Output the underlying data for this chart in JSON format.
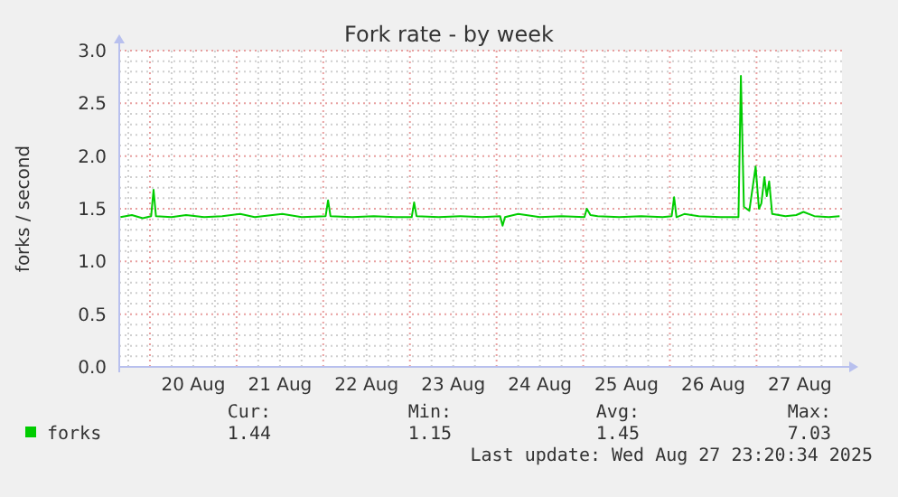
{
  "chart_data": {
    "type": "line",
    "title": "Fork rate - by week",
    "ylabel": "forks / second",
    "x": [
      "2025-08-19T15:50",
      "2025-08-19T19:00",
      "2025-08-19T22:00",
      "2025-08-20T00:20",
      "2025-08-20T01:00",
      "2025-08-20T01:40",
      "2025-08-20T06:00",
      "2025-08-20T10:00",
      "2025-08-20T15:00",
      "2025-08-20T20:00",
      "2025-08-21T01:00",
      "2025-08-21T05:00",
      "2025-08-21T12:40",
      "2025-08-21T18:00",
      "2025-08-22T00:40",
      "2025-08-22T01:20",
      "2025-08-22T02:00",
      "2025-08-22T08:00",
      "2025-08-22T14:00",
      "2025-08-22T20:00",
      "2025-08-23T00:30",
      "2025-08-23T01:10",
      "2025-08-23T01:50",
      "2025-08-23T08:00",
      "2025-08-23T14:00",
      "2025-08-23T20:00",
      "2025-08-24T01:00",
      "2025-08-24T01:40",
      "2025-08-24T02:20",
      "2025-08-24T06:00",
      "2025-08-24T12:00",
      "2025-08-24T18:00",
      "2025-08-25T00:20",
      "2025-08-25T01:00",
      "2025-08-25T02:00",
      "2025-08-25T04:00",
      "2025-08-25T10:00",
      "2025-08-25T16:00",
      "2025-08-25T22:00",
      "2025-08-26T00:30",
      "2025-08-26T01:10",
      "2025-08-26T01:50",
      "2025-08-26T04:00",
      "2025-08-26T08:00",
      "2025-08-26T14:00",
      "2025-08-26T19:00",
      "2025-08-26T19:40",
      "2025-08-26T20:30",
      "2025-08-26T22:00",
      "2025-08-26T23:45",
      "2025-08-27T00:40",
      "2025-08-27T01:20",
      "2025-08-27T02:10",
      "2025-08-27T02:50",
      "2025-08-27T03:30",
      "2025-08-27T04:20",
      "2025-08-27T08:00",
      "2025-08-27T11:00",
      "2025-08-27T13:00",
      "2025-08-27T16:00",
      "2025-08-27T20:00",
      "2025-08-27T23:00"
    ],
    "series": [
      {
        "name": "forks",
        "color": "#00cc00",
        "values": [
          1.42,
          1.44,
          1.41,
          1.43,
          1.68,
          1.43,
          1.42,
          1.44,
          1.42,
          1.43,
          1.45,
          1.42,
          1.45,
          1.42,
          1.43,
          1.58,
          1.43,
          1.42,
          1.43,
          1.42,
          1.42,
          1.56,
          1.43,
          1.42,
          1.43,
          1.42,
          1.43,
          1.34,
          1.42,
          1.45,
          1.42,
          1.43,
          1.42,
          1.5,
          1.44,
          1.43,
          1.42,
          1.43,
          1.42,
          1.43,
          1.61,
          1.42,
          1.45,
          1.43,
          1.42,
          1.42,
          2.76,
          1.52,
          1.48,
          1.9,
          1.5,
          1.55,
          1.8,
          1.62,
          1.76,
          1.45,
          1.43,
          1.44,
          1.47,
          1.43,
          1.42,
          1.43
        ]
      }
    ],
    "xlim": [
      "2025-08-19T15:30",
      "2025-08-27T23:40"
    ],
    "xticks": [
      {
        "value": "2025-08-20T12:00",
        "label": "20 Aug"
      },
      {
        "value": "2025-08-21T12:00",
        "label": "21 Aug"
      },
      {
        "value": "2025-08-22T12:00",
        "label": "22 Aug"
      },
      {
        "value": "2025-08-23T12:00",
        "label": "23 Aug"
      },
      {
        "value": "2025-08-24T12:00",
        "label": "24 Aug"
      },
      {
        "value": "2025-08-25T12:00",
        "label": "25 Aug"
      },
      {
        "value": "2025-08-26T12:00",
        "label": "26 Aug"
      },
      {
        "value": "2025-08-27T12:00",
        "label": "27 Aug"
      }
    ],
    "ylim": [
      0,
      3
    ],
    "yticks": [
      {
        "value": 0,
        "label": "0.0"
      },
      {
        "value": 0.5,
        "label": "0.5"
      },
      {
        "value": 1,
        "label": "1.0"
      },
      {
        "value": 1.5,
        "label": "1.5"
      },
      {
        "value": 2,
        "label": "2.0"
      },
      {
        "value": 2.5,
        "label": "2.5"
      },
      {
        "value": 3,
        "label": "3.0"
      }
    ],
    "grid": true,
    "legend": "bottom left",
    "annotations": [
      "Cur:",
      "1.44",
      "Min:",
      "1.15",
      "Avg:",
      "1.45",
      "Max:",
      "7.03",
      "Last update: Wed Aug 27 23:20:34 2025"
    ]
  }
}
